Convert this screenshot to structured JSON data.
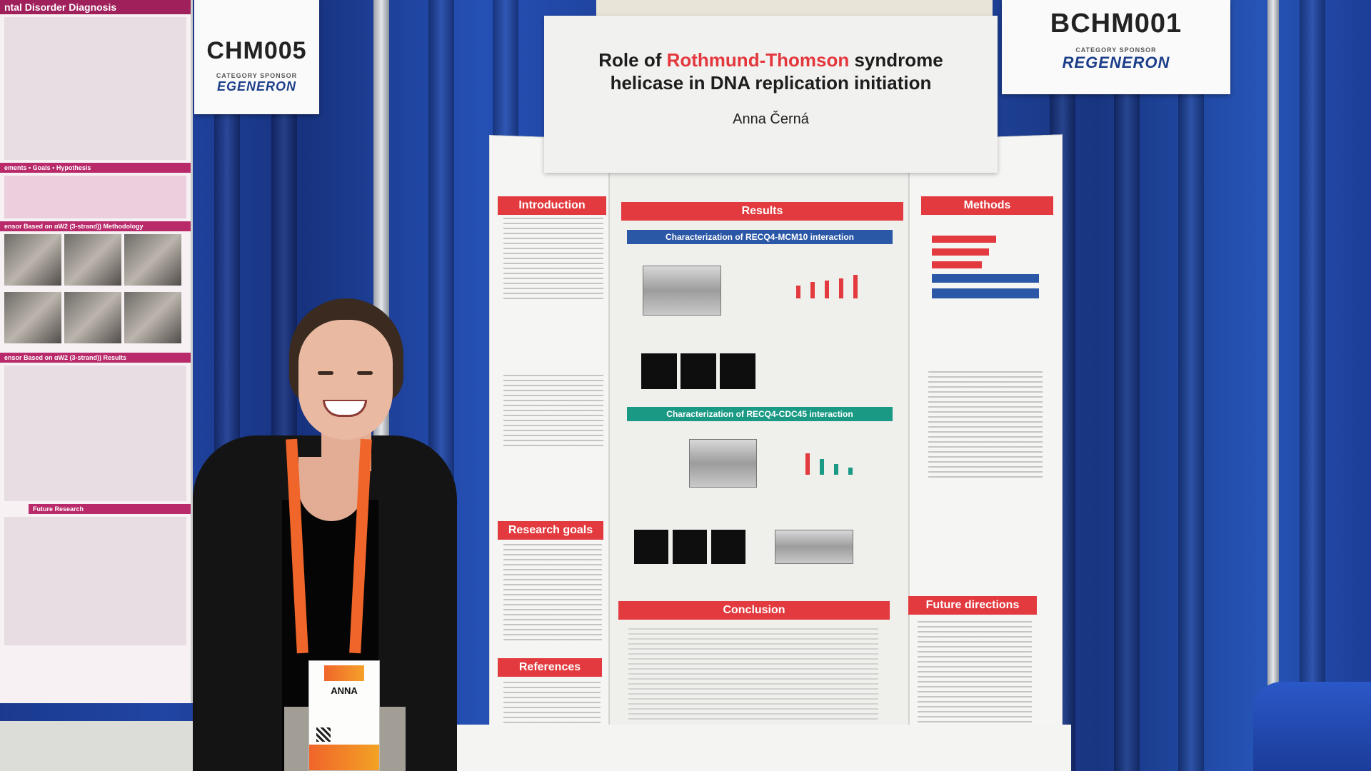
{
  "header_card": {
    "title_part1": "Role of ",
    "title_highlight": "Rothmund-Thomson",
    "title_part2": " syndrome",
    "title_line2": "helicase in DNA replication initiation",
    "author": "Anna Černá"
  },
  "signs": {
    "left": {
      "code": "CHM005",
      "category": "CATEGORY SPONSOR",
      "brand": "EGENERON"
    },
    "right": {
      "code": "BCHM001",
      "category": "CATEGORY SPONSOR",
      "brand": "REGENERON"
    }
  },
  "left_poster": {
    "title": "ntal Disorder Diagnosis",
    "band_1": "ements • Goals • Hypothesis",
    "band_2": "ensor Based on ɑW2 (3-strand)) Methodology",
    "band_3": "ensor Based on ɑW2 (3-strand)) Results",
    "band_4": "Future Research"
  },
  "poster": {
    "sections": {
      "introduction": "Introduction",
      "results": "Results",
      "methods": "Methods",
      "research_goals": "Research goals",
      "references": "References",
      "conclusion": "Conclusion",
      "future_directions": "Future directions"
    },
    "subsections": {
      "mcm10": "Characterization of RECQ4-MCM10 interaction",
      "cdc45": "Characterization of RECQ4-CDC45 interaction"
    }
  },
  "badge": {
    "name": "ANNA"
  },
  "colors": {
    "accent_red": "#e23a3e",
    "results_blue": "#2a57a6",
    "results_teal": "#1a9a84",
    "curtain_blue": "#2145a3",
    "lanyard_orange": "#f0652a"
  }
}
